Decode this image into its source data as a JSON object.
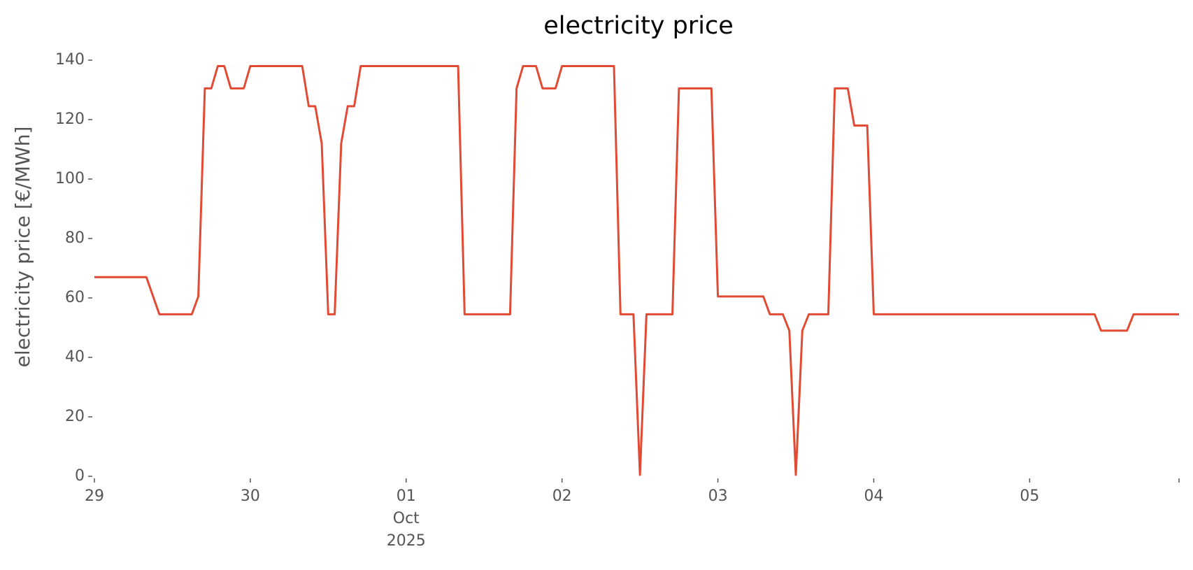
{
  "chart_data": {
    "type": "line",
    "title": "electricity price",
    "ylabel": "electricity price [€/MWh]",
    "x": [
      0,
      8,
      10,
      15,
      16,
      17,
      18,
      19,
      20,
      21,
      23,
      24,
      32,
      33,
      34,
      35,
      36,
      37,
      38,
      39,
      40,
      41,
      56,
      57,
      64,
      65,
      66,
      68,
      69,
      71,
      72,
      80,
      81,
      83,
      84,
      85,
      89,
      90,
      95,
      96,
      103,
      104,
      106,
      107,
      108,
      109,
      110,
      113,
      114,
      116,
      117,
      119,
      120,
      154,
      155,
      159,
      160,
      167
    ],
    "values": [
      67,
      67,
      54.5,
      54.5,
      60.5,
      130.5,
      130.5,
      138,
      138,
      130.5,
      130.5,
      138,
      138,
      124.5,
      124.5,
      112,
      54.5,
      54.5,
      112,
      124.5,
      124.5,
      138,
      138,
      54.5,
      54.5,
      130.5,
      138,
      138,
      130.5,
      130.5,
      138,
      138,
      54.5,
      54.5,
      0.5,
      54.5,
      54.5,
      130.5,
      130.5,
      60.5,
      60.5,
      54.5,
      54.5,
      49,
      0.5,
      49,
      54.5,
      54.5,
      130.5,
      130.5,
      118,
      118,
      54.5,
      54.5,
      49,
      49,
      54.5,
      54.5
    ],
    "color": "#e24a33",
    "xlim": [
      0,
      167
    ],
    "xticks": [
      {
        "value": 0,
        "label": "29"
      },
      {
        "value": 24,
        "label": "30"
      },
      {
        "value": 48,
        "label": "01\nOct\n2025"
      },
      {
        "value": 72,
        "label": "02"
      },
      {
        "value": 96,
        "label": "03"
      },
      {
        "value": 120,
        "label": "04"
      },
      {
        "value": 144,
        "label": "05"
      }
    ],
    "ylim": [
      0,
      140
    ],
    "yticks": [
      0,
      20,
      40,
      60,
      80,
      100,
      120,
      140
    ],
    "grid": false
  }
}
